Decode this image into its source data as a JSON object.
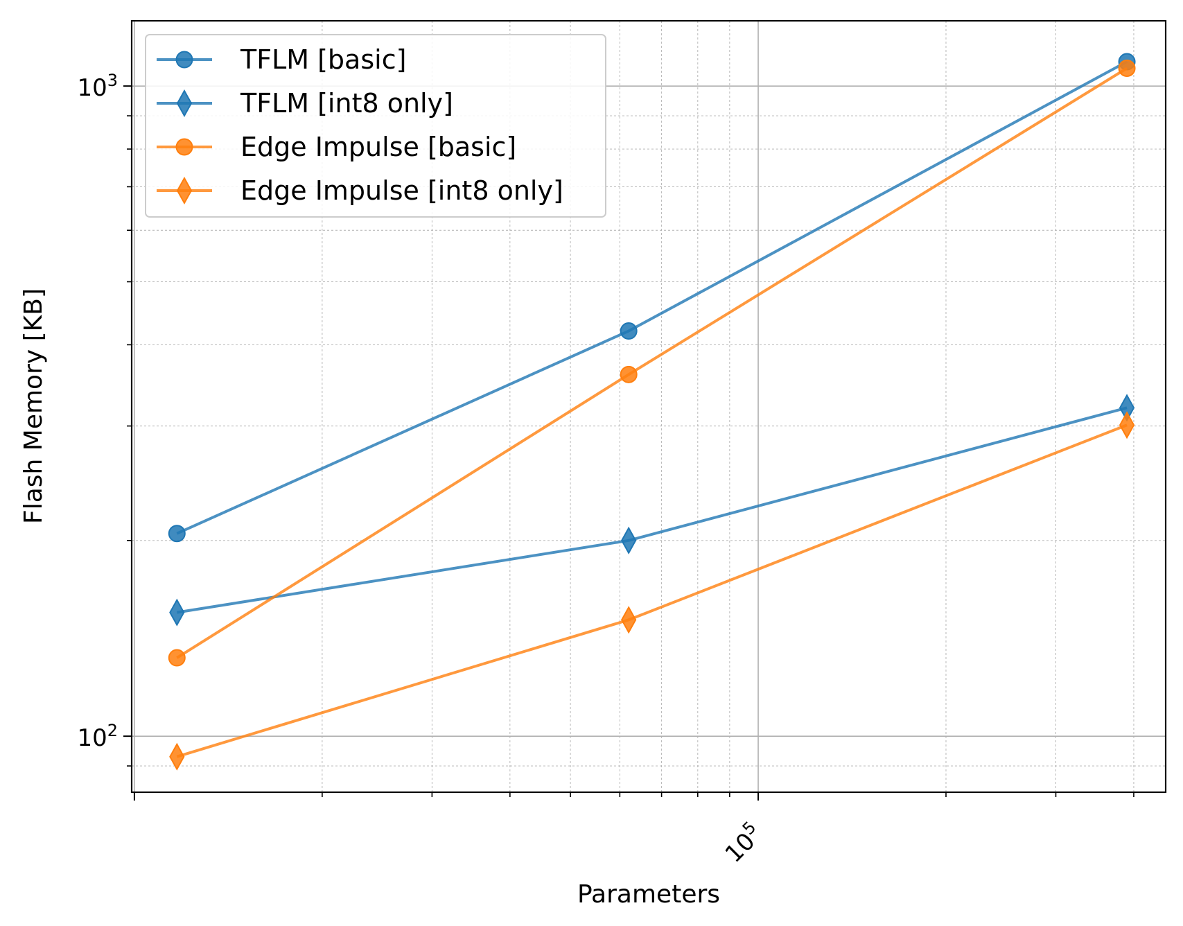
{
  "chart_data": {
    "type": "line",
    "title": "",
    "xlabel": "Parameters",
    "ylabel": "Flash Memory [KB]",
    "xscale": "log",
    "yscale": "log",
    "xlim": [
      9900,
      450000
    ],
    "ylim": [
      82,
      1260
    ],
    "x_tick_labels": [
      {
        "value": 100000,
        "base": "10",
        "exp": "5"
      }
    ],
    "y_tick_labels": [
      {
        "value": 100,
        "base": "10",
        "exp": "2"
      },
      {
        "value": 1000,
        "base": "10",
        "exp": "3"
      }
    ],
    "grid": "major and minor",
    "legend_position": "top-left",
    "series": [
      {
        "name": "TFLM [basic]",
        "marker": "circle",
        "color": "#1f77b4",
        "x": [
          11700,
          62000,
          390000
        ],
        "y": [
          205,
          420,
          1090
        ]
      },
      {
        "name": "TFLM [int8 only]",
        "marker": "diamond",
        "color": "#1f77b4",
        "x": [
          11700,
          62000,
          390000
        ],
        "y": [
          155,
          200,
          320
        ]
      },
      {
        "name": "Edge Impulse [basic]",
        "marker": "circle",
        "color": "#ff7f0e",
        "x": [
          11700,
          62000,
          390000
        ],
        "y": [
          132,
          360,
          1065
        ]
      },
      {
        "name": "Edge Impulse [int8 only]",
        "marker": "diamond",
        "color": "#ff7f0e",
        "x": [
          11700,
          62000,
          390000
        ],
        "y": [
          93,
          151,
          301
        ]
      }
    ]
  }
}
